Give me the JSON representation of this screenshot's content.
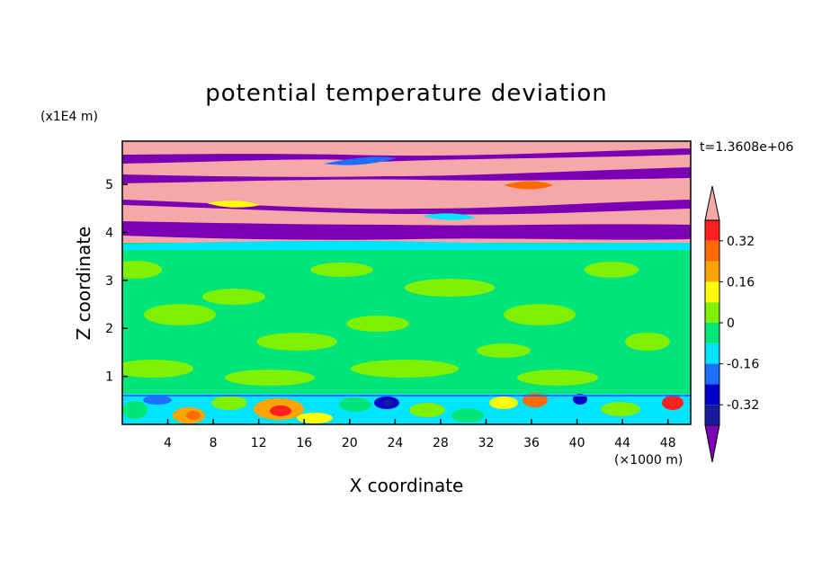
{
  "chart_data": {
    "type": "heatmap",
    "title": "potential temperature deviation",
    "xlabel": "X coordinate",
    "ylabel": "Z coordinate",
    "x_unit": "(×1000 m)",
    "y_unit": "(x1E4 m)",
    "time_label": "t=1.3608e+06",
    "xlim": [
      0,
      50
    ],
    "ylim": [
      0,
      5.9
    ],
    "x_ticks": [
      4,
      8,
      12,
      16,
      20,
      24,
      28,
      32,
      36,
      40,
      44,
      48
    ],
    "x_tick_labels": [
      "4",
      "8",
      "12",
      "16",
      "20",
      "24",
      "28",
      "32",
      "36",
      "40",
      "44",
      "48"
    ],
    "y_ticks": [
      1,
      2,
      3,
      4,
      5
    ],
    "y_tick_labels": [
      "1",
      "2",
      "3",
      "4",
      "5"
    ],
    "colorbar": {
      "levels": [
        -0.4,
        -0.32,
        -0.24,
        -0.16,
        -0.08,
        0,
        0.08,
        0.16,
        0.24,
        0.32,
        0.4
      ],
      "tick_values": [
        -0.32,
        -0.16,
        0,
        0.16,
        0.32
      ],
      "tick_labels": [
        "-0.32",
        "-0.16",
        "0",
        "0.16",
        "0.32"
      ],
      "colors": [
        "#1a1a9e",
        "#0000cd",
        "#1e6eff",
        "#00e5ff",
        "#00e57a",
        "#7ef000",
        "#ffff00",
        "#ffa500",
        "#ff6a00",
        "#ff2020"
      ],
      "under_color": "#7b00b4",
      "over_color": "#f4a8a8",
      "extend": "both"
    },
    "regions": [
      {
        "name": "lower boundary layer",
        "z_range": [
          0,
          0.62
        ],
        "dominant_value_range": [
          -0.16,
          0.32
        ],
        "note": "mixed cyan, green, yellow, orange, red with blue patches"
      },
      {
        "name": "middle troposphere",
        "z_range": [
          0.62,
          3.7
        ],
        "dominant_value_range": [
          -0.08,
          0.08
        ],
        "note": "green bands"
      },
      {
        "name": "upper layers",
        "z_range": [
          3.7,
          5.9
        ],
        "dominant_value_range": [
          -0.4,
          0.4
        ],
        "note": "alternating purple (below -0.4) and pink (above 0.4) slanted bands"
      }
    ]
  }
}
